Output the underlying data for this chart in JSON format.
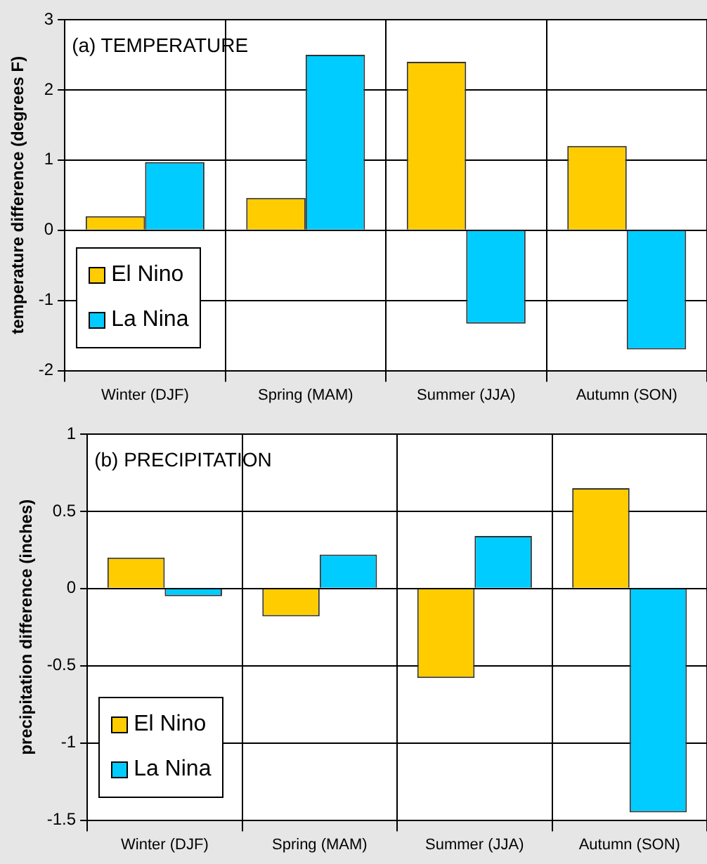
{
  "chart_data": [
    {
      "type": "bar",
      "title": "(a) TEMPERATURE",
      "ylabel": "temperature difference (degrees F)",
      "categories": [
        "Winter (DJF)",
        "Spring (MAM)",
        "Summer (JJA)",
        "Autumn (SON)"
      ],
      "series": [
        {
          "name": "El Nino",
          "color": "#ffcc00",
          "values": [
            0.2,
            0.46,
            2.4,
            1.2
          ]
        },
        {
          "name": "La Nina",
          "color": "#00ccff",
          "values": [
            0.97,
            2.5,
            -1.33,
            -1.7
          ]
        }
      ],
      "ylim": [
        -2,
        3
      ],
      "yticks": [
        -2,
        -1,
        0,
        1,
        2,
        3
      ],
      "grid": true,
      "legend": "bottom left"
    },
    {
      "type": "bar",
      "title": "(b) PRECIPITATION",
      "ylabel": "precipitation difference (inches)",
      "categories": [
        "Winter (DJF)",
        "Spring (MAM)",
        "Summer (JJA)",
        "Autumn (SON)"
      ],
      "series": [
        {
          "name": "El Nino",
          "color": "#ffcc00",
          "values": [
            0.2,
            -0.18,
            -0.58,
            0.65
          ]
        },
        {
          "name": "La Nina",
          "color": "#00ccff",
          "values": [
            -0.05,
            0.22,
            0.34,
            -1.45
          ]
        }
      ],
      "ylim": [
        -1.5,
        1
      ],
      "yticks": [
        -1.5,
        -1,
        -0.5,
        0,
        0.5,
        1
      ],
      "grid": true,
      "legend": "bottom left"
    }
  ]
}
